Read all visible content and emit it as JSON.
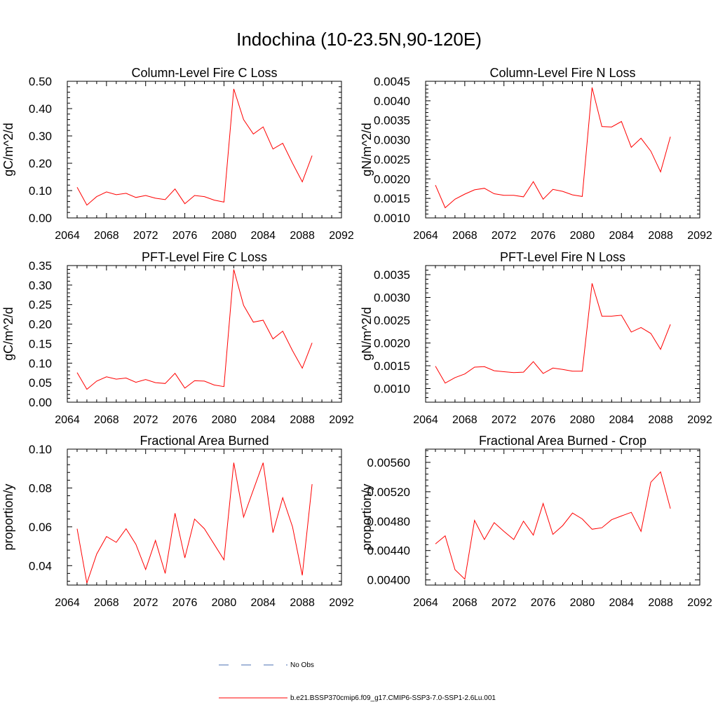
{
  "title": "Indochina (10-23.5N,90-120E)",
  "colors": {
    "series": "#ff0000",
    "obs": "#4a6fb3",
    "axis": "#000000"
  },
  "legend": {
    "obs_label": "No Obs",
    "model_label": "b.e21.BSSP370cmip6.f09_g17.CMIP6-SSP3-7.0-SSP1-2.6Lu.001"
  },
  "chart_data": [
    {
      "type": "line",
      "title": "Column-Level Fire C Loss",
      "ylabel": "gC/m^2/d",
      "xlim": [
        2064,
        2092
      ],
      "ylim": [
        0.0,
        0.5
      ],
      "xticks": [
        "2064",
        "2068",
        "2072",
        "2076",
        "2080",
        "2084",
        "2088",
        "2092"
      ],
      "yticks": [
        "0.00",
        "0.10",
        "0.20",
        "0.30",
        "0.40",
        "0.50"
      ],
      "x": [
        2065,
        2066,
        2067,
        2068,
        2069,
        2070,
        2071,
        2072,
        2073,
        2074,
        2075,
        2076,
        2077,
        2078,
        2079,
        2080,
        2081,
        2082,
        2083,
        2084,
        2085,
        2086,
        2087,
        2088,
        2089
      ],
      "series": [
        {
          "values": [
            0.112,
            0.047,
            0.078,
            0.095,
            0.085,
            0.09,
            0.075,
            0.082,
            0.072,
            0.067,
            0.106,
            0.052,
            0.082,
            0.078,
            0.065,
            0.058,
            0.472,
            0.36,
            0.307,
            0.333,
            0.252,
            0.273,
            0.2,
            0.132,
            0.228
          ]
        }
      ]
    },
    {
      "type": "line",
      "title": "Column-Level Fire N Loss",
      "ylabel": "gN/m^2/d",
      "xlim": [
        2064,
        2092
      ],
      "ylim": [
        0.001,
        0.0045
      ],
      "xticks": [
        "2064",
        "2068",
        "2072",
        "2076",
        "2080",
        "2084",
        "2088",
        "2092"
      ],
      "yticks": [
        "0.0010",
        "0.0015",
        "0.0020",
        "0.0025",
        "0.0030",
        "0.0035",
        "0.0040",
        "0.0045"
      ],
      "x": [
        2065,
        2066,
        2067,
        2068,
        2069,
        2070,
        2071,
        2072,
        2073,
        2074,
        2075,
        2076,
        2077,
        2078,
        2079,
        2080,
        2081,
        2082,
        2083,
        2084,
        2085,
        2086,
        2087,
        2088,
        2089
      ],
      "series": [
        {
          "values": [
            0.00184,
            0.00126,
            0.00148,
            0.00161,
            0.00172,
            0.00176,
            0.00162,
            0.00158,
            0.00158,
            0.00154,
            0.00193,
            0.00148,
            0.00173,
            0.00168,
            0.00159,
            0.00155,
            0.00434,
            0.00334,
            0.00333,
            0.00347,
            0.00281,
            0.00304,
            0.00271,
            0.00218,
            0.00308
          ]
        }
      ]
    },
    {
      "type": "line",
      "title": "PFT-Level Fire C Loss",
      "ylabel": "gC/m^2/d",
      "xlim": [
        2064,
        2092
      ],
      "ylim": [
        0.0,
        0.35
      ],
      "xticks": [
        "2064",
        "2068",
        "2072",
        "2076",
        "2080",
        "2084",
        "2088",
        "2092"
      ],
      "yticks": [
        "0.00",
        "0.05",
        "0.10",
        "0.15",
        "0.20",
        "0.25",
        "0.30",
        "0.35"
      ],
      "x": [
        2065,
        2066,
        2067,
        2068,
        2069,
        2070,
        2071,
        2072,
        2073,
        2074,
        2075,
        2076,
        2077,
        2078,
        2079,
        2080,
        2081,
        2082,
        2083,
        2084,
        2085,
        2086,
        2087,
        2088,
        2089
      ],
      "series": [
        {
          "values": [
            0.076,
            0.033,
            0.054,
            0.065,
            0.059,
            0.062,
            0.051,
            0.058,
            0.05,
            0.048,
            0.074,
            0.036,
            0.055,
            0.054,
            0.044,
            0.04,
            0.34,
            0.248,
            0.205,
            0.21,
            0.162,
            0.182,
            0.132,
            0.087,
            0.152
          ]
        }
      ]
    },
    {
      "type": "line",
      "title": "PFT-Level Fire N Loss",
      "ylabel": "gN/m^2/d",
      "xlim": [
        2064,
        2092
      ],
      "ylim": [
        0.0007,
        0.0037
      ],
      "xticks": [
        "2064",
        "2068",
        "2072",
        "2076",
        "2080",
        "2084",
        "2088",
        "2092"
      ],
      "yticks": [
        "0.0010",
        "0.0015",
        "0.0020",
        "0.0025",
        "0.0030",
        "0.0035"
      ],
      "x": [
        2065,
        2066,
        2067,
        2068,
        2069,
        2070,
        2071,
        2072,
        2073,
        2074,
        2075,
        2076,
        2077,
        2078,
        2079,
        2080,
        2081,
        2082,
        2083,
        2084,
        2085,
        2086,
        2087,
        2088,
        2089
      ],
      "series": [
        {
          "values": [
            0.00149,
            0.00112,
            0.00124,
            0.00132,
            0.00147,
            0.00148,
            0.00139,
            0.00137,
            0.00135,
            0.00136,
            0.00159,
            0.00133,
            0.00145,
            0.00142,
            0.00138,
            0.00138,
            0.00331,
            0.00259,
            0.00259,
            0.00261,
            0.00224,
            0.00234,
            0.00221,
            0.00186,
            0.00241
          ]
        }
      ]
    },
    {
      "type": "line",
      "title": "Fractional Area Burned",
      "ylabel": "proportion/y",
      "xlim": [
        2064,
        2092
      ],
      "ylim": [
        0.03,
        0.1
      ],
      "xticks": [
        "2064",
        "2068",
        "2072",
        "2076",
        "2080",
        "2084",
        "2088",
        "2092"
      ],
      "yticks": [
        "0.04",
        "0.06",
        "0.08",
        "0.10"
      ],
      "x": [
        2065,
        2066,
        2067,
        2068,
        2069,
        2070,
        2071,
        2072,
        2073,
        2074,
        2075,
        2076,
        2077,
        2078,
        2079,
        2080,
        2081,
        2082,
        2083,
        2084,
        2085,
        2086,
        2087,
        2088,
        2089
      ],
      "series": [
        {
          "values": [
            0.059,
            0.031,
            0.046,
            0.055,
            0.052,
            0.059,
            0.051,
            0.038,
            0.053,
            0.036,
            0.067,
            0.044,
            0.064,
            0.059,
            0.051,
            0.043,
            0.093,
            0.065,
            0.079,
            0.093,
            0.057,
            0.075,
            0.06,
            0.035,
            0.082
          ]
        }
      ]
    },
    {
      "type": "line",
      "title": "Fractional Area Burned - Crop",
      "ylabel": "proportion/y",
      "xlim": [
        2064,
        2092
      ],
      "ylim": [
        0.00393,
        0.00578
      ],
      "xticks": [
        "2064",
        "2068",
        "2072",
        "2076",
        "2080",
        "2084",
        "2088",
        "2092"
      ],
      "yticks": [
        "0.00400",
        "0.00440",
        "0.00480",
        "0.00520",
        "0.00560"
      ],
      "x": [
        2065,
        2066,
        2067,
        2068,
        2069,
        2070,
        2071,
        2072,
        2073,
        2074,
        2075,
        2076,
        2077,
        2078,
        2079,
        2080,
        2081,
        2082,
        2083,
        2084,
        2085,
        2086,
        2087,
        2088,
        2089
      ],
      "series": [
        {
          "values": [
            0.00449,
            0.0046,
            0.00414,
            0.00401,
            0.00481,
            0.00455,
            0.00478,
            0.00466,
            0.00455,
            0.0048,
            0.00461,
            0.00504,
            0.00462,
            0.00474,
            0.00491,
            0.00483,
            0.00469,
            0.00471,
            0.00482,
            0.00487,
            0.00492,
            0.00466,
            0.00533,
            0.00547,
            0.00497
          ]
        }
      ]
    }
  ]
}
